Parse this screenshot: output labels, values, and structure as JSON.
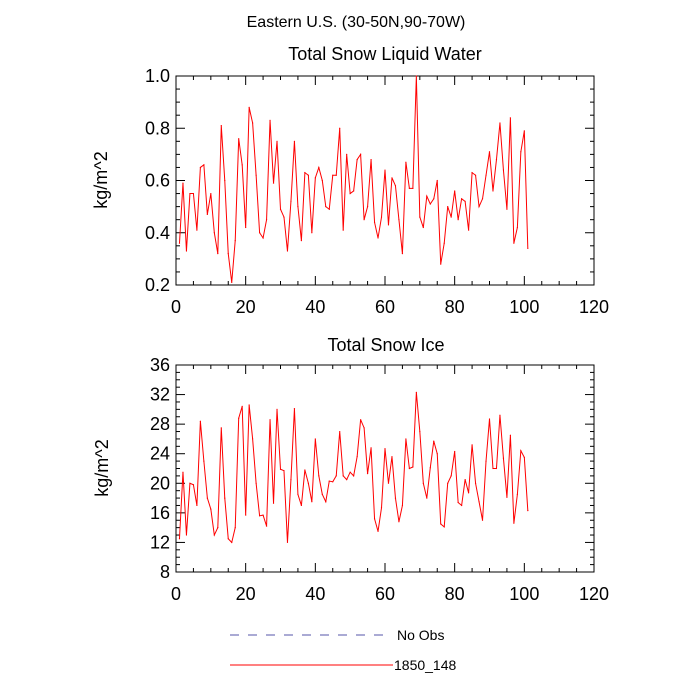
{
  "figure": {
    "title": "Eastern U.S. (30-50N,90-70W)"
  },
  "chart_data": [
    {
      "type": "line",
      "title": "Total Snow Liquid Water",
      "xlabel": "",
      "ylabel": "kg/m^2",
      "xlim": [
        0,
        120
      ],
      "ylim": [
        0.2,
        1.0
      ],
      "x_ticks": [
        0,
        20,
        40,
        60,
        80,
        100,
        120
      ],
      "y_ticks": [
        0.2,
        0.4,
        0.6,
        0.8,
        1.0
      ],
      "x_tick_labels": [
        "0",
        "20",
        "40",
        "60",
        "80",
        "100",
        "120"
      ],
      "y_tick_labels": [
        "0.2",
        "0.4",
        "0.6",
        "0.8",
        "1.0"
      ],
      "grid": false,
      "series": [
        {
          "name": "1850_148",
          "color": "#ff0000",
          "x": [
            1,
            2,
            3,
            4,
            5,
            6,
            7,
            8,
            9,
            10,
            11,
            12,
            13,
            14,
            15,
            16,
            17,
            18,
            19,
            20,
            21,
            22,
            23,
            24,
            25,
            26,
            27,
            28,
            29,
            30,
            31,
            32,
            33,
            34,
            35,
            36,
            37,
            38,
            39,
            40,
            41,
            42,
            43,
            44,
            45,
            46,
            47,
            48,
            49,
            50,
            51,
            52,
            53,
            54,
            55,
            56,
            57,
            58,
            59,
            60,
            61,
            62,
            63,
            64,
            65,
            66,
            67,
            68,
            69,
            70,
            71,
            72,
            73,
            74,
            75,
            76,
            77,
            78,
            79,
            80,
            81,
            82,
            83,
            84,
            85,
            86,
            87,
            88,
            89,
            90,
            91,
            92,
            93,
            94,
            95,
            96,
            97,
            98,
            99,
            100,
            101
          ],
          "values": [
            0.36,
            0.59,
            0.33,
            0.55,
            0.55,
            0.41,
            0.65,
            0.66,
            0.47,
            0.55,
            0.4,
            0.32,
            0.81,
            0.6,
            0.32,
            0.21,
            0.37,
            0.76,
            0.66,
            0.42,
            0.88,
            0.82,
            0.62,
            0.4,
            0.38,
            0.45,
            0.83,
            0.59,
            0.75,
            0.49,
            0.46,
            0.33,
            0.52,
            0.75,
            0.5,
            0.37,
            0.63,
            0.62,
            0.4,
            0.61,
            0.65,
            0.6,
            0.5,
            0.49,
            0.62,
            0.62,
            0.8,
            0.41,
            0.7,
            0.55,
            0.56,
            0.68,
            0.7,
            0.45,
            0.5,
            0.68,
            0.44,
            0.38,
            0.46,
            0.64,
            0.43,
            0.61,
            0.58,
            0.45,
            0.32,
            0.67,
            0.57,
            0.57,
            1.0,
            0.46,
            0.42,
            0.54,
            0.51,
            0.53,
            0.6,
            0.28,
            0.36,
            0.5,
            0.46,
            0.56,
            0.45,
            0.53,
            0.52,
            0.41,
            0.63,
            0.62,
            0.5,
            0.53,
            0.62,
            0.71,
            0.56,
            0.68,
            0.82,
            0.64,
            0.49,
            0.84,
            0.36,
            0.42,
            0.71,
            0.79,
            0.34
          ]
        }
      ]
    },
    {
      "type": "line",
      "title": "Total Snow Ice",
      "xlabel": "",
      "ylabel": "kg/m^2",
      "xlim": [
        0,
        120
      ],
      "ylim": [
        8,
        36
      ],
      "x_ticks": [
        0,
        20,
        40,
        60,
        80,
        100,
        120
      ],
      "y_ticks": [
        8,
        12,
        16,
        20,
        24,
        28,
        32,
        36
      ],
      "x_tick_labels": [
        "0",
        "20",
        "40",
        "60",
        "80",
        "100",
        "120"
      ],
      "y_tick_labels": [
        "8",
        "12",
        "16",
        "20",
        "24",
        "28",
        "32",
        "36"
      ],
      "grid": false,
      "series": [
        {
          "name": "1850_148",
          "color": "#ff0000",
          "x": [
            1,
            2,
            3,
            4,
            5,
            6,
            7,
            8,
            9,
            10,
            11,
            12,
            13,
            14,
            15,
            16,
            17,
            18,
            19,
            20,
            21,
            22,
            23,
            24,
            25,
            26,
            27,
            28,
            29,
            30,
            31,
            32,
            33,
            34,
            35,
            36,
            37,
            38,
            39,
            40,
            41,
            42,
            43,
            44,
            45,
            46,
            47,
            48,
            49,
            50,
            51,
            52,
            53,
            54,
            55,
            56,
            57,
            58,
            59,
            60,
            61,
            62,
            63,
            64,
            65,
            66,
            67,
            68,
            69,
            70,
            71,
            72,
            73,
            74,
            75,
            76,
            77,
            78,
            79,
            80,
            81,
            82,
            83,
            84,
            85,
            86,
            87,
            88,
            89,
            90,
            91,
            92,
            93,
            94,
            95,
            96,
            97,
            98,
            99,
            100,
            101
          ],
          "values": [
            12.5,
            21.5,
            13,
            20,
            19.8,
            17,
            28.4,
            23,
            18,
            16.5,
            13,
            14,
            27.5,
            18,
            12.5,
            12,
            14,
            28.8,
            30.4,
            15.7,
            30.6,
            26,
            20,
            15.6,
            15.7,
            14.2,
            28.6,
            17.3,
            30,
            21.9,
            21.7,
            12,
            20.5,
            30.1,
            18.5,
            17,
            21.8,
            20,
            17.5,
            26,
            21,
            18.5,
            17.5,
            20.3,
            20.2,
            21,
            27,
            21,
            20.5,
            21.5,
            21,
            23.6,
            28.6,
            27.5,
            21.3,
            24.8,
            15.2,
            13.5,
            16.7,
            24.7,
            20,
            23.6,
            18,
            14.8,
            17,
            26,
            22,
            22.2,
            32.3,
            27,
            20,
            18,
            22.1,
            25.7,
            24,
            14.5,
            14.1,
            20,
            21,
            24.3,
            17.4,
            17,
            20.5,
            18.7,
            25.2,
            20,
            17.5,
            15,
            23,
            28.7,
            22,
            22,
            29.2,
            23.4,
            18.1,
            26.5,
            14.6,
            18.5,
            24.4,
            23.5,
            16.3
          ]
        }
      ]
    }
  ],
  "legend": {
    "items": [
      {
        "label": "No Obs",
        "color": "#5555aa",
        "style": "dashed"
      },
      {
        "label": "1850_148",
        "color": "#ff0000",
        "style": "solid"
      }
    ]
  }
}
